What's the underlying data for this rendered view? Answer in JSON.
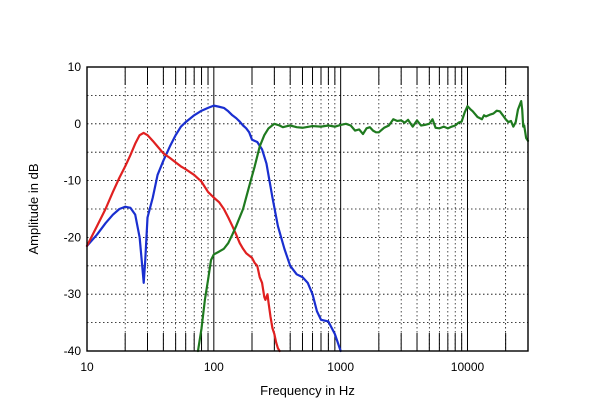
{
  "chart_data": {
    "type": "line",
    "title": "",
    "xlabel": "Frequency in Hz",
    "ylabel": "Amplitude in dB",
    "xscale": "log",
    "xlim": [
      10,
      30000
    ],
    "ylim": [
      -40,
      10
    ],
    "x_ticks": [
      10,
      100,
      1000,
      10000
    ],
    "x_tick_labels": [
      "10",
      "100",
      "1000",
      "10000"
    ],
    "y_ticks": [
      10,
      0,
      -10,
      -20,
      -30,
      -40
    ],
    "y_tick_labels": [
      "10",
      "0",
      "-10",
      "-20",
      "-30",
      "-40"
    ],
    "grid": true,
    "legend": "none",
    "series": [
      {
        "color": "#1a2fd0",
        "points": [
          [
            10,
            -21.5
          ],
          [
            12,
            -19.5
          ],
          [
            14,
            -17.5
          ],
          [
            16,
            -16
          ],
          [
            18,
            -15
          ],
          [
            20,
            -14.6
          ],
          [
            22,
            -14.8
          ],
          [
            24,
            -16
          ],
          [
            26,
            -20
          ],
          [
            27.5,
            -26
          ],
          [
            28,
            -28
          ],
          [
            28.8,
            -24
          ],
          [
            30,
            -16.5
          ],
          [
            33,
            -13
          ],
          [
            36,
            -9
          ],
          [
            40,
            -6.5
          ],
          [
            45,
            -4
          ],
          [
            50,
            -2
          ],
          [
            55,
            -0.5
          ],
          [
            60,
            0.3
          ],
          [
            70,
            1.5
          ],
          [
            80,
            2.3
          ],
          [
            90,
            2.8
          ],
          [
            100,
            3.2
          ],
          [
            110,
            3.0
          ],
          [
            120,
            2.8
          ],
          [
            130,
            2.2
          ],
          [
            140,
            1.5
          ],
          [
            150,
            1.0
          ],
          [
            160,
            0.4
          ],
          [
            170,
            -0.3
          ],
          [
            180,
            -0.8
          ],
          [
            190,
            -1.5
          ],
          [
            200,
            -2.8
          ],
          [
            220,
            -3.2
          ],
          [
            240,
            -4.5
          ],
          [
            260,
            -7
          ],
          [
            290,
            -13
          ],
          [
            320,
            -18
          ],
          [
            360,
            -22
          ],
          [
            400,
            -25
          ],
          [
            450,
            -26.5
          ],
          [
            500,
            -27
          ],
          [
            550,
            -28
          ],
          [
            600,
            -30
          ],
          [
            650,
            -33
          ],
          [
            700,
            -34.5
          ],
          [
            800,
            -34.8
          ],
          [
            900,
            -37
          ],
          [
            1000,
            -40
          ]
        ]
      },
      {
        "color": "#e02020",
        "points": [
          [
            10,
            -21.5
          ],
          [
            12,
            -18
          ],
          [
            14,
            -15
          ],
          [
            16,
            -12
          ],
          [
            18,
            -9.5
          ],
          [
            20,
            -7.5
          ],
          [
            22,
            -5.5
          ],
          [
            24,
            -3.5
          ],
          [
            26,
            -2
          ],
          [
            28,
            -1.6
          ],
          [
            30,
            -2
          ],
          [
            33,
            -3
          ],
          [
            36,
            -4
          ],
          [
            40,
            -5.2
          ],
          [
            45,
            -6
          ],
          [
            50,
            -6.8
          ],
          [
            55,
            -7.5
          ],
          [
            60,
            -8
          ],
          [
            70,
            -9
          ],
          [
            80,
            -10.2
          ],
          [
            90,
            -12
          ],
          [
            100,
            -13
          ],
          [
            110,
            -13.8
          ],
          [
            120,
            -15
          ],
          [
            130,
            -16.5
          ],
          [
            140,
            -18
          ],
          [
            150,
            -19.5
          ],
          [
            160,
            -21
          ],
          [
            170,
            -22
          ],
          [
            180,
            -22.8
          ],
          [
            190,
            -23.2
          ],
          [
            200,
            -23.6
          ],
          [
            210,
            -24.5
          ],
          [
            220,
            -25
          ],
          [
            230,
            -27
          ],
          [
            240,
            -28
          ],
          [
            250,
            -30.5
          ],
          [
            255,
            -31
          ],
          [
            265,
            -30
          ],
          [
            270,
            -31.5
          ],
          [
            280,
            -34
          ],
          [
            290,
            -36
          ],
          [
            300,
            -37
          ],
          [
            310,
            -38.5
          ],
          [
            320,
            -39.5
          ],
          [
            330,
            -40
          ]
        ]
      },
      {
        "color": "#1f7a1f",
        "points": [
          [
            75,
            -40
          ],
          [
            80,
            -36
          ],
          [
            85,
            -31
          ],
          [
            90,
            -27.5
          ],
          [
            95,
            -24
          ],
          [
            100,
            -23
          ],
          [
            110,
            -22.5
          ],
          [
            120,
            -22
          ],
          [
            130,
            -21
          ],
          [
            140,
            -19.5
          ],
          [
            150,
            -18
          ],
          [
            170,
            -15
          ],
          [
            190,
            -11
          ],
          [
            210,
            -7.5
          ],
          [
            230,
            -4
          ],
          [
            250,
            -2
          ],
          [
            270,
            -0.8
          ],
          [
            300,
            0
          ],
          [
            330,
            -0.3
          ],
          [
            350,
            -0.6
          ],
          [
            380,
            -0.4
          ],
          [
            400,
            -0.3
          ],
          [
            450,
            -0.6
          ],
          [
            500,
            -0.7
          ],
          [
            600,
            -0.4
          ],
          [
            700,
            -0.5
          ],
          [
            800,
            -0.3
          ],
          [
            900,
            -0.5
          ],
          [
            1000,
            -0.2
          ],
          [
            1100,
            0
          ],
          [
            1200,
            -0.3
          ],
          [
            1300,
            -1.2
          ],
          [
            1400,
            -1
          ],
          [
            1500,
            -1.8
          ],
          [
            1600,
            -0.8
          ],
          [
            1700,
            -0.6
          ],
          [
            1800,
            -1.2
          ],
          [
            1900,
            -1.5
          ],
          [
            2000,
            -1.5
          ],
          [
            2200,
            -0.7
          ],
          [
            2400,
            -0.3
          ],
          [
            2600,
            0.8
          ],
          [
            2800,
            0.5
          ],
          [
            3000,
            0.6
          ],
          [
            3200,
            0.2
          ],
          [
            3400,
            0.7
          ],
          [
            3700,
            -0.5
          ],
          [
            4000,
            0.6
          ],
          [
            4300,
            -0.3
          ],
          [
            4600,
            -0.2
          ],
          [
            5000,
            0
          ],
          [
            5300,
            0.8
          ],
          [
            5600,
            -0.7
          ],
          [
            6000,
            -0.8
          ],
          [
            6500,
            -0.5
          ],
          [
            7000,
            -0.8
          ],
          [
            7500,
            -0.5
          ],
          [
            8000,
            -0.3
          ],
          [
            8500,
            0.2
          ],
          [
            9000,
            0.4
          ],
          [
            9500,
            2
          ],
          [
            10000,
            3.1
          ],
          [
            10500,
            2.6
          ],
          [
            11000,
            2.2
          ],
          [
            12000,
            1.2
          ],
          [
            13000,
            0.8
          ],
          [
            13500,
            1.5
          ],
          [
            14000,
            1.3
          ],
          [
            15000,
            1.6
          ],
          [
            16000,
            1.8
          ],
          [
            17000,
            2.3
          ],
          [
            18000,
            2.2
          ],
          [
            19000,
            1.5
          ],
          [
            20000,
            0.8
          ],
          [
            21000,
            0.3
          ],
          [
            22000,
            0.5
          ],
          [
            23000,
            -0.5
          ],
          [
            24000,
            0.3
          ],
          [
            25000,
            2.5
          ],
          [
            26000,
            3.5
          ],
          [
            26500,
            4
          ],
          [
            27000,
            2.5
          ],
          [
            27500,
            -0.5
          ],
          [
            28000,
            -0.3
          ],
          [
            29000,
            -2.5
          ],
          [
            30000,
            -3
          ]
        ]
      }
    ]
  }
}
